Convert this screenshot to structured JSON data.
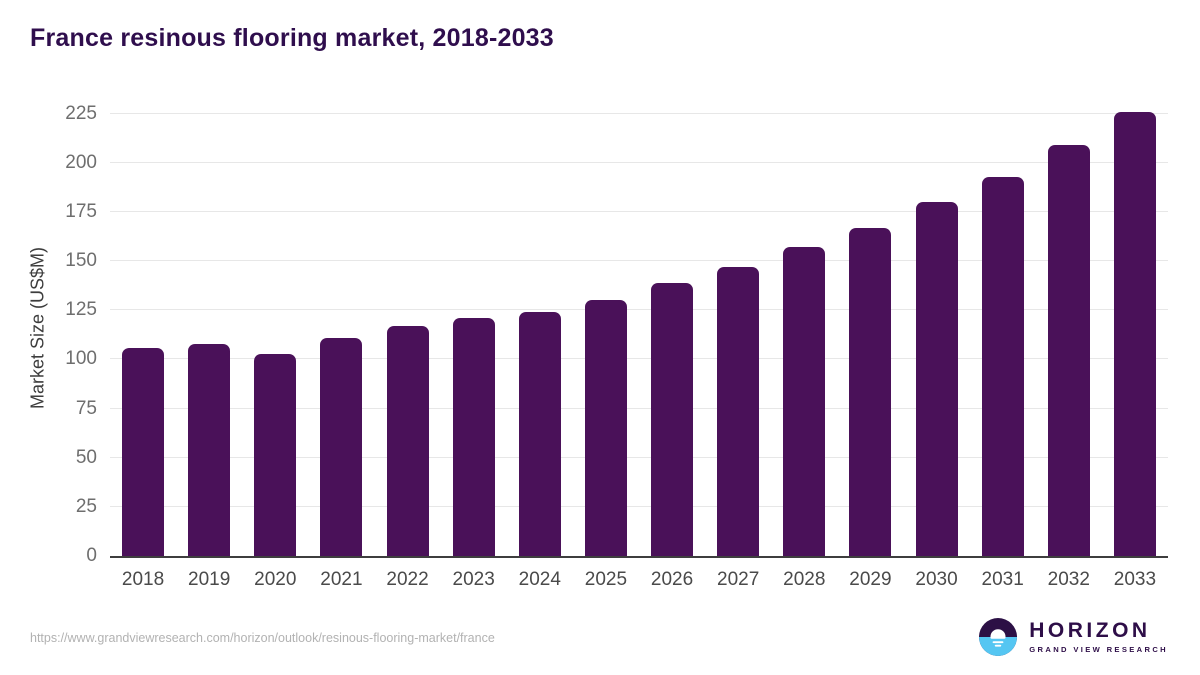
{
  "chart_data": {
    "type": "bar",
    "title": "France resinous flooring market, 2018-2033",
    "categories": [
      "2018",
      "2019",
      "2020",
      "2021",
      "2022",
      "2023",
      "2024",
      "2025",
      "2026",
      "2027",
      "2028",
      "2029",
      "2030",
      "2031",
      "2032",
      "2033"
    ],
    "values": [
      106,
      108,
      103,
      111,
      117,
      121,
      124,
      130,
      139,
      147,
      157,
      167,
      180,
      193,
      209,
      226
    ],
    "xlabel": "",
    "ylabel": "Market Size (US$M)",
    "yticks": [
      0,
      25,
      50,
      75,
      100,
      125,
      150,
      175,
      200,
      225
    ],
    "ylim": [
      0,
      232
    ],
    "grid": true,
    "legend": "none"
  },
  "footer": {
    "source_url": "https://www.grandviewresearch.com/horizon/outlook/resinous-flooring-market/france",
    "logo": {
      "brand": "HORIZON",
      "subbrand": "GRAND VIEW RESEARCH"
    }
  },
  "colors": {
    "bar": "#4a1159",
    "title": "#2f0e4d",
    "grid": "#e7e7e7",
    "axis": "#3e3e3e",
    "ytick": "#6e6e6e",
    "xtick": "#4a4a4a",
    "ylabel": "#3d3d3d",
    "url": "#b2b2b2",
    "logo_purple": "#2c1045",
    "logo_blue": "#55c6f2",
    "logo_text": "#2e0e48"
  }
}
